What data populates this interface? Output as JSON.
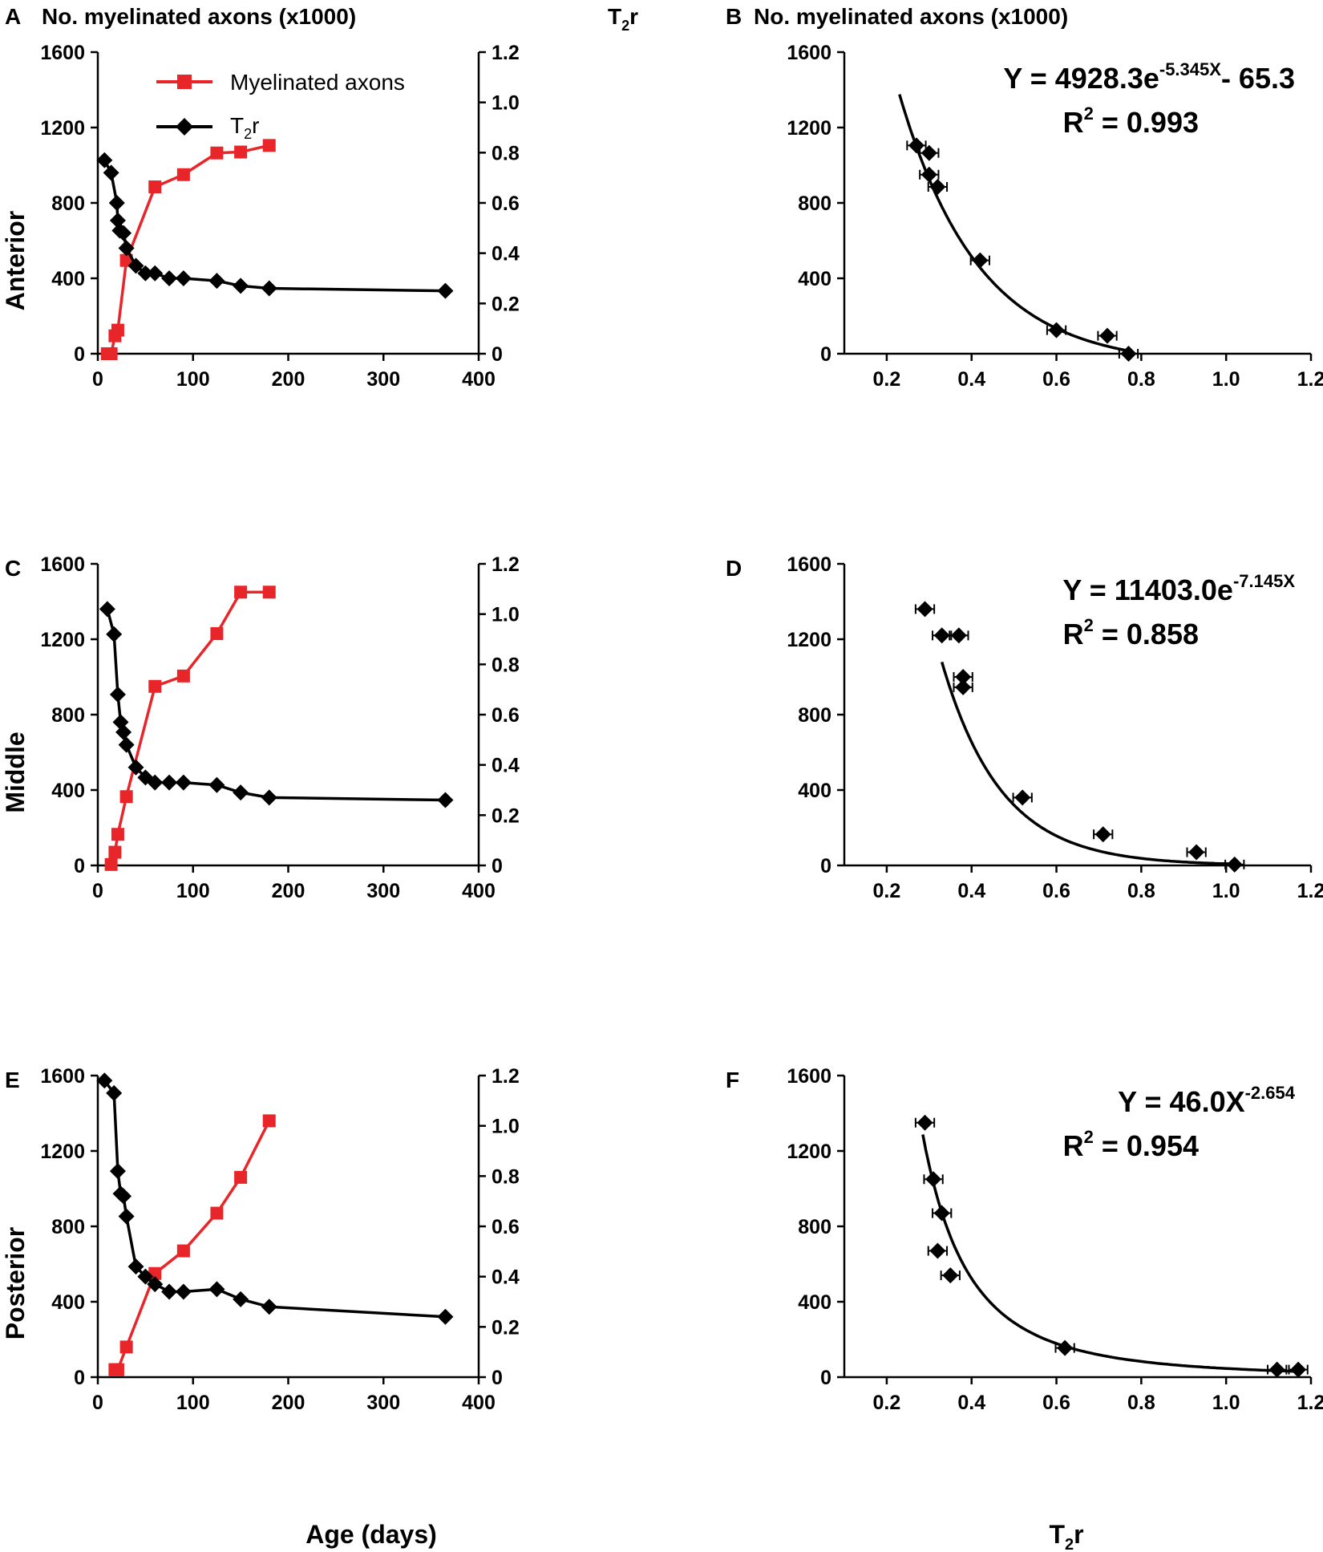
{
  "figure": {
    "left_title": "No. myelinated axons (x1000)",
    "right_axis_title_left": "T",
    "right_axis_title_sub": "2",
    "right_axis_title_right": "r",
    "x_title_left_col": "Age (days)",
    "x_title_right_col_main": "T",
    "x_title_right_col_sub": "2",
    "x_title_right_col_end": "r",
    "colors": {
      "red": "#e8262a",
      "black": "#000000"
    }
  },
  "chart_data": [
    {
      "panel": "A",
      "type": "line",
      "row_label": "Anterior",
      "title": "No. myelinated axons (x1000)",
      "right_title": "T2r",
      "xlim": [
        0,
        400
      ],
      "ylim_left": [
        0,
        1600
      ],
      "ylim_right": [
        0,
        1.2
      ],
      "x_ticks": [
        "0",
        "100",
        "200",
        "300",
        "400"
      ],
      "y_ticks_left": [
        "0",
        "400",
        "800",
        "1200",
        "1600"
      ],
      "y_ticks_right": [
        "0",
        "0.2",
        "0.4",
        "0.6",
        "0.8",
        "1.0",
        "1.2"
      ],
      "legend": {
        "red": "Myelinated axons",
        "black_main": "T",
        "black_sub": "2",
        "black_end": "r"
      },
      "series": [
        {
          "name": "Myelinated axons",
          "axis": "left",
          "color": "#e8262a",
          "x": [
            10,
            14,
            18,
            21,
            30,
            60,
            90,
            125,
            150,
            180
          ],
          "values": [
            0,
            0,
            95,
            125,
            495,
            885,
            950,
            1065,
            1070,
            1105
          ]
        },
        {
          "name": "T2r",
          "axis": "right",
          "color": "#000000",
          "x": [
            7,
            14,
            20,
            21,
            23,
            27,
            30,
            40,
            50,
            60,
            75,
            90,
            125,
            150,
            180,
            365
          ],
          "values": [
            0.77,
            0.72,
            0.6,
            0.53,
            0.49,
            0.48,
            0.42,
            0.35,
            0.32,
            0.32,
            0.3,
            0.3,
            0.29,
            0.27,
            0.26,
            0.25
          ]
        }
      ]
    },
    {
      "panel": "B",
      "type": "scatter",
      "title": "No. myelinated axons (x1000)",
      "xlim": [
        0.1,
        1.2
      ],
      "ylim": [
        0,
        1600
      ],
      "x_ticks": [
        "0.2",
        "0.4",
        "0.6",
        "0.8",
        "1.0",
        "1.2"
      ],
      "y_ticks": [
        "0",
        "400",
        "800",
        "1200",
        "1600"
      ],
      "equation_line1": "Y = 4928.3e",
      "equation_sup": "-5.345X",
      "equation_tail": "- 65.3",
      "r2_label": "R",
      "r2_sup": "2",
      "r2_value": " = 0.993",
      "fit": {
        "kind": "exp",
        "a": 4928.3,
        "b": -5.345,
        "c": -65.3,
        "x_from": 0.23,
        "x_to": 0.78
      },
      "points": [
        {
          "x": 0.27,
          "y": 1105
        },
        {
          "x": 0.3,
          "y": 1065
        },
        {
          "x": 0.3,
          "y": 950
        },
        {
          "x": 0.32,
          "y": 885
        },
        {
          "x": 0.42,
          "y": 495
        },
        {
          "x": 0.6,
          "y": 125
        },
        {
          "x": 0.72,
          "y": 95
        },
        {
          "x": 0.77,
          "y": 0
        }
      ]
    },
    {
      "panel": "C",
      "type": "line",
      "row_label": "Middle",
      "xlim": [
        0,
        400
      ],
      "ylim_left": [
        0,
        1600
      ],
      "ylim_right": [
        0,
        1.2
      ],
      "x_ticks": [
        "0",
        "100",
        "200",
        "300",
        "400"
      ],
      "y_ticks_left": [
        "0",
        "400",
        "800",
        "1200",
        "1600"
      ],
      "y_ticks_right": [
        "0",
        "0.2",
        "0.4",
        "0.6",
        "0.8",
        "1.0",
        "1.2"
      ],
      "series": [
        {
          "name": "Myelinated axons",
          "axis": "left",
          "color": "#e8262a",
          "x": [
            14,
            18,
            21,
            30,
            60,
            90,
            125,
            150,
            180
          ],
          "values": [
            5,
            70,
            165,
            365,
            950,
            1005,
            1230,
            1450,
            1450
          ]
        },
        {
          "name": "T2r",
          "axis": "right",
          "color": "#000000",
          "x": [
            10,
            17,
            21,
            24,
            27,
            30,
            40,
            50,
            60,
            75,
            90,
            125,
            150,
            180,
            365
          ],
          "values": [
            1.02,
            0.92,
            0.68,
            0.57,
            0.53,
            0.48,
            0.39,
            0.35,
            0.33,
            0.33,
            0.33,
            0.32,
            0.29,
            0.27,
            0.26
          ]
        }
      ]
    },
    {
      "panel": "D",
      "type": "scatter",
      "xlim": [
        0.1,
        1.2
      ],
      "ylim": [
        0,
        1600
      ],
      "x_ticks": [
        "0.2",
        "0.4",
        "0.6",
        "0.8",
        "1.0",
        "1.2"
      ],
      "y_ticks": [
        "0",
        "400",
        "800",
        "1200",
        "1600"
      ],
      "equation_line1": "Y = 11403.0e",
      "equation_sup": "-7.145X",
      "equation_tail": "",
      "r2_label": "R",
      "r2_sup": "2",
      "r2_value": " = 0.858",
      "fit": {
        "kind": "exp",
        "a": 11403.0,
        "b": -7.145,
        "c": 0,
        "x_from": 0.33,
        "x_to": 1.02
      },
      "points": [
        {
          "x": 0.29,
          "y": 1360
        },
        {
          "x": 0.33,
          "y": 1220
        },
        {
          "x": 0.37,
          "y": 1220
        },
        {
          "x": 0.38,
          "y": 1000
        },
        {
          "x": 0.38,
          "y": 945
        },
        {
          "x": 0.52,
          "y": 360
        },
        {
          "x": 0.71,
          "y": 165
        },
        {
          "x": 0.93,
          "y": 70
        },
        {
          "x": 1.02,
          "y": 5
        }
      ]
    },
    {
      "panel": "E",
      "type": "line",
      "row_label": "Posterior",
      "xlim": [
        0,
        400
      ],
      "ylim_left": [
        0,
        1600
      ],
      "ylim_right": [
        0,
        1.2
      ],
      "x_ticks": [
        "0",
        "100",
        "200",
        "300",
        "400"
      ],
      "y_ticks_left": [
        "0",
        "400",
        "800",
        "1200",
        "1600"
      ],
      "y_ticks_right": [
        "0",
        "0.2",
        "0.4",
        "0.6",
        "0.8",
        "1.0",
        "1.2"
      ],
      "series": [
        {
          "name": "Myelinated axons",
          "axis": "left",
          "color": "#e8262a",
          "x": [
            18,
            21,
            30,
            60,
            90,
            125,
            150,
            180
          ],
          "values": [
            40,
            40,
            160,
            550,
            670,
            870,
            1060,
            1360
          ]
        },
        {
          "name": "T2r",
          "axis": "right",
          "color": "#000000",
          "x": [
            7,
            17,
            21,
            24,
            27,
            30,
            40,
            50,
            60,
            75,
            90,
            125,
            150,
            180,
            365
          ],
          "values": [
            1.18,
            1.13,
            0.82,
            0.73,
            0.72,
            0.64,
            0.44,
            0.4,
            0.37,
            0.34,
            0.34,
            0.35,
            0.31,
            0.28,
            0.24
          ]
        }
      ]
    },
    {
      "panel": "F",
      "type": "scatter",
      "xlim": [
        0.1,
        1.2
      ],
      "ylim": [
        0,
        1600
      ],
      "x_ticks": [
        "0.2",
        "0.4",
        "0.6",
        "0.8",
        "1.0",
        "1.2"
      ],
      "y_ticks": [
        "0",
        "400",
        "800",
        "1200",
        "1600"
      ],
      "xlabel_main": "T",
      "xlabel_sub": "2",
      "xlabel_end": "r",
      "equation_line1": "Y = 46.0X",
      "equation_sup": "-2.654",
      "equation_tail": "",
      "r2_label": "R",
      "r2_sup": "2",
      "r2_value": " = 0.954",
      "fit": {
        "kind": "power",
        "a": 46.0,
        "b": -2.654,
        "c": 0,
        "x_from": 0.285,
        "x_to": 1.18
      },
      "points": [
        {
          "x": 0.29,
          "y": 1350
        },
        {
          "x": 0.31,
          "y": 1050
        },
        {
          "x": 0.33,
          "y": 870
        },
        {
          "x": 0.32,
          "y": 670
        },
        {
          "x": 0.35,
          "y": 540
        },
        {
          "x": 0.62,
          "y": 155
        },
        {
          "x": 1.12,
          "y": 40
        },
        {
          "x": 1.17,
          "y": 40
        }
      ]
    }
  ]
}
